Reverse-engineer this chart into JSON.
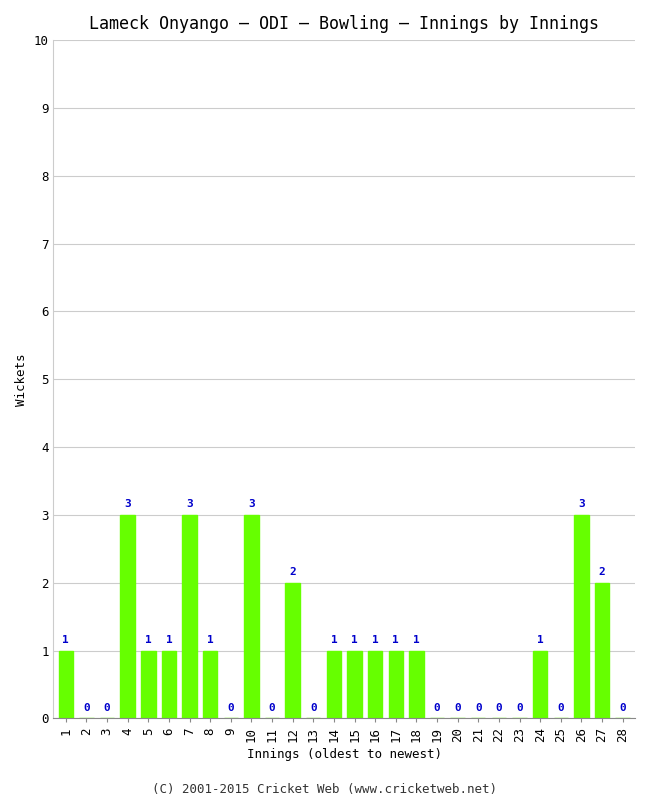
{
  "title": "Lameck Onyango – ODI – Bowling – Innings by Innings",
  "xlabel": "Innings (oldest to newest)",
  "ylabel": "Wickets",
  "background_color": "#ffffff",
  "bar_color": "#66ff00",
  "label_color": "#0000cc",
  "ylim": [
    0,
    10
  ],
  "yticks": [
    0,
    1,
    2,
    3,
    4,
    5,
    6,
    7,
    8,
    9,
    10
  ],
  "innings": [
    1,
    2,
    3,
    4,
    5,
    6,
    7,
    8,
    9,
    10,
    11,
    12,
    13,
    14,
    15,
    16,
    17,
    18,
    19,
    20,
    21,
    22,
    23,
    24,
    25,
    26,
    27,
    28
  ],
  "wickets": [
    1,
    0,
    0,
    3,
    1,
    1,
    3,
    1,
    0,
    3,
    0,
    2,
    0,
    1,
    1,
    1,
    1,
    1,
    0,
    0,
    0,
    0,
    0,
    1,
    0,
    3,
    2,
    0
  ],
  "xtick_labels": [
    "1",
    "2",
    "3",
    "4",
    "5",
    "6",
    "7",
    "8",
    "9",
    "10",
    "11",
    "12",
    "13",
    "14",
    "15",
    "16",
    "17",
    "18",
    "19",
    "20",
    "21",
    "22",
    "23",
    "24",
    "25",
    "26",
    "27",
    "28"
  ],
  "footer": "(C) 2001-2015 Cricket Web (www.cricketweb.net)",
  "title_fontsize": 12,
  "axis_label_fontsize": 9,
  "tick_fontsize": 9,
  "footer_fontsize": 9,
  "bar_label_fontsize": 8,
  "grid_color": "#cccccc"
}
